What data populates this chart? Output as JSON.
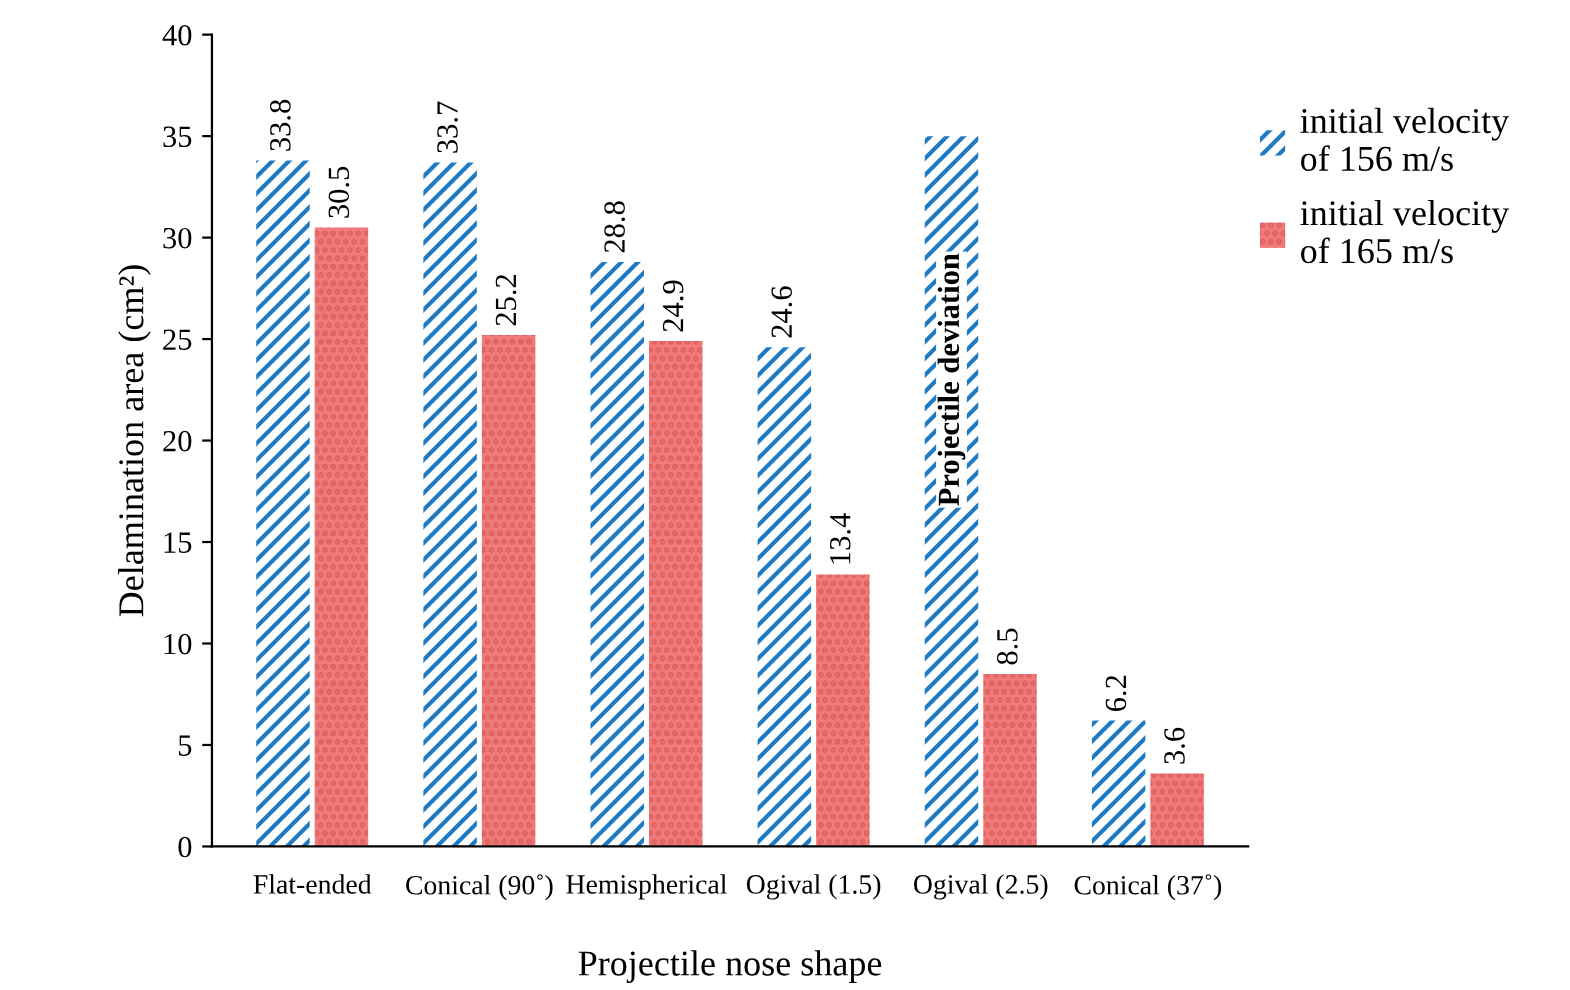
{
  "chart_data": {
    "type": "bar",
    "xlabel": "Projectile nose shape",
    "ylabel": "Delamination area (cm²)",
    "categories": [
      "Flat-ended",
      "Conical (90˚)",
      "Hemispherical",
      "Ogival (1.5)",
      "Ogival (2.5)",
      "Conical (37˚)"
    ],
    "series": [
      {
        "name": "initial velocity\nof 156 m/s",
        "color": "#1f7ac4",
        "values": [
          33.8,
          33.7,
          28.8,
          24.6,
          35,
          6.2
        ],
        "value_labels": [
          "33.8",
          "33.7",
          "28.8",
          "24.6",
          null,
          "6.2"
        ]
      },
      {
        "name": "initial velocity\nof 165 m/s",
        "color": "#f07a7a",
        "values": [
          30.5,
          25.2,
          24.9,
          13.4,
          8.5,
          3.6
        ],
        "value_labels": [
          "30.5",
          "25.2",
          "24.9",
          "13.4",
          "8.5",
          "3.6"
        ]
      }
    ],
    "annotations": [
      {
        "text": "Projectile deviation",
        "x": "Ogival (2.5)",
        "y": 23
      }
    ],
    "ylim": [
      0,
      40
    ],
    "yticks": [
      0,
      5,
      10,
      15,
      20,
      25,
      30,
      35,
      40
    ],
    "grid": false,
    "legend": "top right"
  }
}
